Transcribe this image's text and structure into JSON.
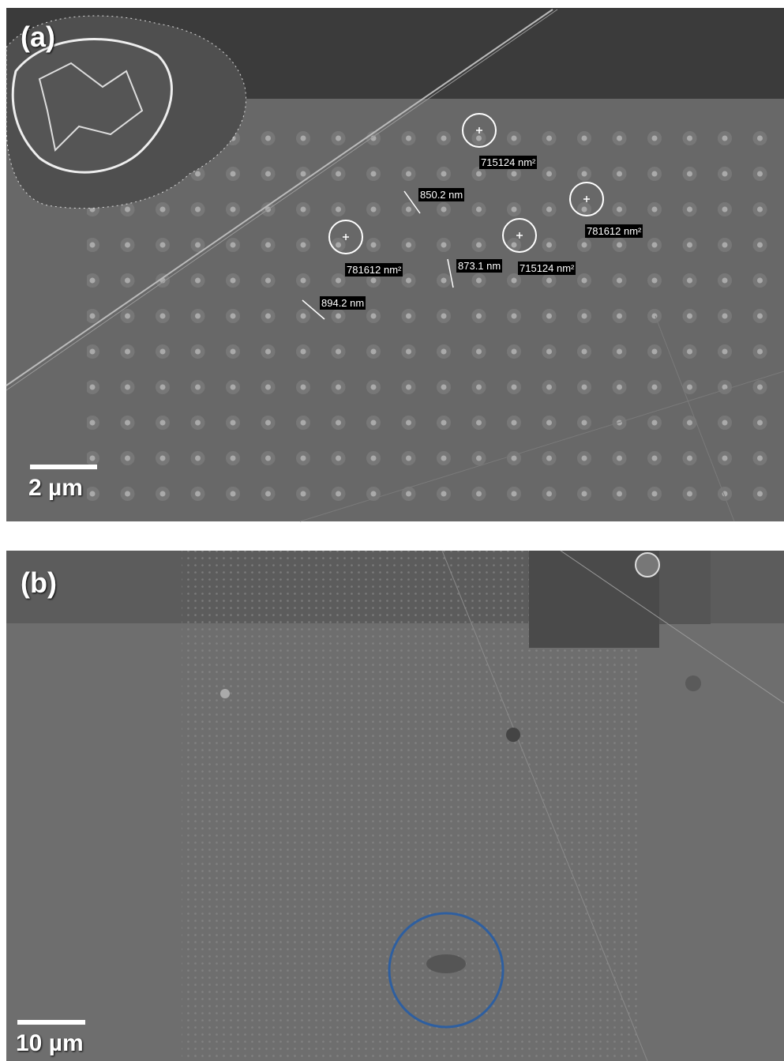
{
  "panels": [
    {
      "label": "(a)",
      "scale_bar": "2 µm",
      "annotations": [
        "715124 nm²",
        "781612 nm²",
        "781612 nm²",
        "715124 nm²",
        "850.2 nm",
        "873.1 nm",
        "894.2 nm"
      ]
    },
    {
      "label": "(b)",
      "scale_bar": "10 µm"
    }
  ]
}
